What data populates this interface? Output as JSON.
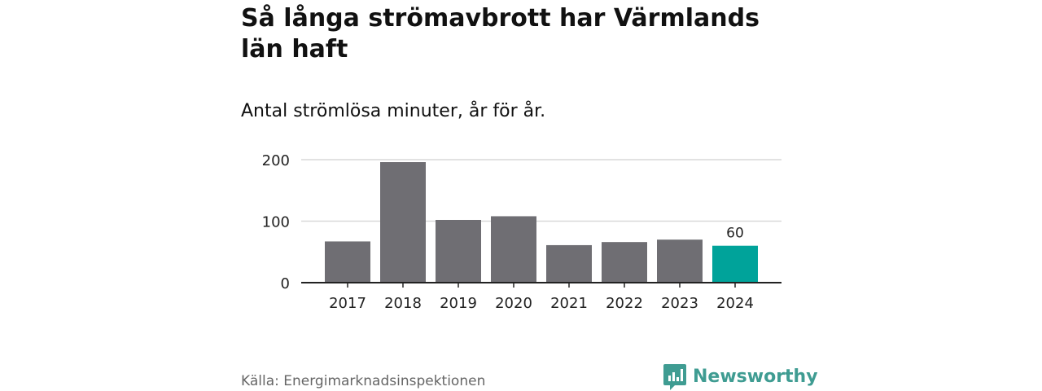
{
  "header": {
    "title": "Så långa strömavbrott har Värmlands län haft",
    "subtitle": "Antal strömlösa minuter, år för år."
  },
  "footer": {
    "source": "Källa: Energimarknadsinspektionen",
    "brand": "Newsworthy"
  },
  "colors": {
    "bar": "#6f6e73",
    "highlight": "#00a39a",
    "grid": "#d9d9d9",
    "axis": "#222222",
    "brand": "#3f9c92"
  },
  "icons": {
    "brand_logo": "bar-chart-speech-bubble-icon"
  },
  "chart_data": {
    "type": "bar",
    "title": "Så långa strömavbrott har Värmlands län haft",
    "subtitle": "Antal strömlösa minuter, år för år.",
    "xlabel": "",
    "ylabel": "",
    "categories": [
      "2017",
      "2018",
      "2019",
      "2020",
      "2021",
      "2022",
      "2023",
      "2024"
    ],
    "values": [
      67,
      196,
      102,
      108,
      61,
      66,
      70,
      60
    ],
    "highlight_index": 7,
    "highlight_label": "60",
    "ylim": [
      0,
      200
    ],
    "yticks": [
      "0",
      "100",
      "200"
    ],
    "grid": true,
    "legend": "none"
  }
}
